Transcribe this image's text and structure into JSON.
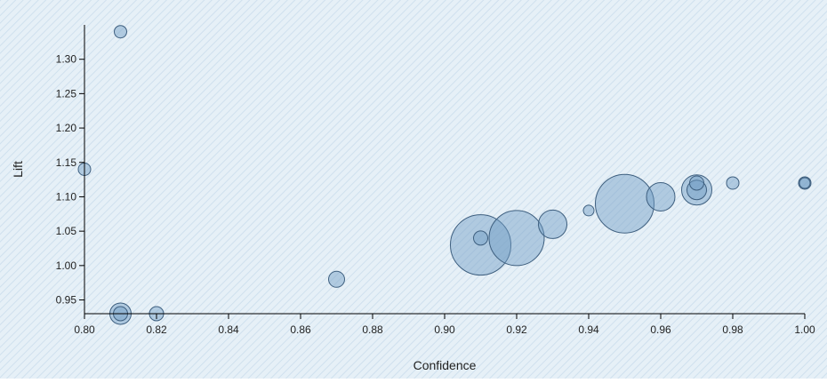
{
  "chart_data": {
    "type": "scatter",
    "title": "",
    "xlabel": "Confidence",
    "ylabel": "Lift",
    "xlim": [
      0.8,
      1.0
    ],
    "ylim": [
      0.93,
      1.35
    ],
    "x_ticks": [
      "0.80",
      "0.82",
      "0.84",
      "0.86",
      "0.88",
      "0.90",
      "0.92",
      "0.94",
      "0.96",
      "0.98",
      "1.00"
    ],
    "y_ticks": [
      "0.95",
      "1.00",
      "1.05",
      "1.10",
      "1.15",
      "1.20",
      "1.25",
      "1.30"
    ],
    "grid": false,
    "legend": "none",
    "background": "diagonal-hatch light blue",
    "bubble_color": "#6f9cc4",
    "bubble_stroke": "#3e5f7f",
    "points": [
      {
        "x": 0.81,
        "y": 1.34,
        "size": 7
      },
      {
        "x": 0.8,
        "y": 1.14,
        "size": 7
      },
      {
        "x": 0.81,
        "y": 0.93,
        "size": 12
      },
      {
        "x": 0.81,
        "y": 0.93,
        "size": 8
      },
      {
        "x": 0.82,
        "y": 0.93,
        "size": 8
      },
      {
        "x": 0.87,
        "y": 0.98,
        "size": 9
      },
      {
        "x": 0.91,
        "y": 1.03,
        "size": 34
      },
      {
        "x": 0.91,
        "y": 1.04,
        "size": 8
      },
      {
        "x": 0.92,
        "y": 1.04,
        "size": 31
      },
      {
        "x": 0.93,
        "y": 1.06,
        "size": 16
      },
      {
        "x": 0.94,
        "y": 1.08,
        "size": 6
      },
      {
        "x": 0.95,
        "y": 1.09,
        "size": 33
      },
      {
        "x": 0.96,
        "y": 1.1,
        "size": 16
      },
      {
        "x": 0.97,
        "y": 1.11,
        "size": 17
      },
      {
        "x": 0.97,
        "y": 1.11,
        "size": 11
      },
      {
        "x": 0.97,
        "y": 1.12,
        "size": 8
      },
      {
        "x": 0.98,
        "y": 1.12,
        "size": 7
      },
      {
        "x": 1.0,
        "y": 1.12,
        "size": 7
      },
      {
        "x": 1.0,
        "y": 1.12,
        "size": 6
      }
    ]
  }
}
